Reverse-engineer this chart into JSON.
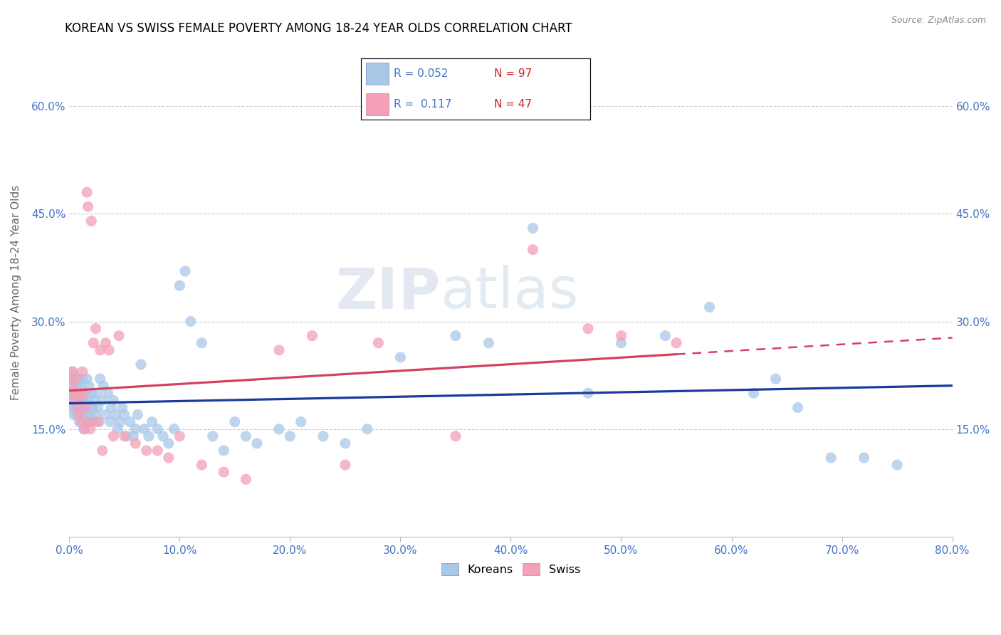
{
  "title": "KOREAN VS SWISS FEMALE POVERTY AMONG 18-24 YEAR OLDS CORRELATION CHART",
  "source": "Source: ZipAtlas.com",
  "ylabel": "Female Poverty Among 18-24 Year Olds",
  "xlim": [
    0.0,
    0.8
  ],
  "ylim": [
    0.0,
    0.68
  ],
  "xticks": [
    0.0,
    0.1,
    0.2,
    0.3,
    0.4,
    0.5,
    0.6,
    0.7,
    0.8
  ],
  "yticks": [
    0.15,
    0.3,
    0.45,
    0.6
  ],
  "ytick_labels": [
    "15.0%",
    "30.0%",
    "45.0%",
    "60.0%"
  ],
  "xtick_labels": [
    "0.0%",
    "10.0%",
    "20.0%",
    "30.0%",
    "40.0%",
    "50.0%",
    "60.0%",
    "70.0%",
    "80.0%"
  ],
  "korean_color": "#a8c8e8",
  "swiss_color": "#f4a0b8",
  "korean_line_color": "#1a3a9c",
  "swiss_line_color": "#d44060",
  "watermark_zip": "ZIP",
  "watermark_atlas": "atlas",
  "korean_R": "0.052",
  "korean_N": "97",
  "swiss_R": "0.117",
  "swiss_N": "47",
  "koreans_x": [
    0.001,
    0.002,
    0.002,
    0.003,
    0.003,
    0.004,
    0.004,
    0.005,
    0.005,
    0.006,
    0.006,
    0.007,
    0.007,
    0.008,
    0.008,
    0.009,
    0.009,
    0.01,
    0.01,
    0.011,
    0.011,
    0.012,
    0.012,
    0.013,
    0.013,
    0.014,
    0.015,
    0.015,
    0.016,
    0.017,
    0.017,
    0.018,
    0.018,
    0.019,
    0.02,
    0.021,
    0.022,
    0.023,
    0.024,
    0.025,
    0.026,
    0.027,
    0.028,
    0.03,
    0.031,
    0.033,
    0.035,
    0.037,
    0.038,
    0.04,
    0.042,
    0.044,
    0.046,
    0.048,
    0.05,
    0.052,
    0.055,
    0.058,
    0.06,
    0.062,
    0.065,
    0.068,
    0.072,
    0.075,
    0.08,
    0.085,
    0.09,
    0.095,
    0.1,
    0.105,
    0.11,
    0.12,
    0.13,
    0.14,
    0.15,
    0.16,
    0.17,
    0.19,
    0.2,
    0.21,
    0.23,
    0.25,
    0.27,
    0.3,
    0.35,
    0.38,
    0.42,
    0.47,
    0.5,
    0.54,
    0.58,
    0.62,
    0.64,
    0.66,
    0.69,
    0.72,
    0.75
  ],
  "koreans_y": [
    0.22,
    0.2,
    0.18,
    0.23,
    0.19,
    0.21,
    0.17,
    0.2,
    0.18,
    0.22,
    0.19,
    0.21,
    0.17,
    0.2,
    0.18,
    0.22,
    0.16,
    0.19,
    0.21,
    0.18,
    0.2,
    0.17,
    0.22,
    0.19,
    0.15,
    0.18,
    0.2,
    0.17,
    0.22,
    0.19,
    0.16,
    0.21,
    0.18,
    0.17,
    0.2,
    0.18,
    0.16,
    0.19,
    0.17,
    0.2,
    0.18,
    0.16,
    0.22,
    0.19,
    0.21,
    0.17,
    0.2,
    0.16,
    0.18,
    0.19,
    0.17,
    0.15,
    0.16,
    0.18,
    0.17,
    0.14,
    0.16,
    0.14,
    0.15,
    0.17,
    0.24,
    0.15,
    0.14,
    0.16,
    0.15,
    0.14,
    0.13,
    0.15,
    0.35,
    0.37,
    0.3,
    0.27,
    0.14,
    0.12,
    0.16,
    0.14,
    0.13,
    0.15,
    0.14,
    0.16,
    0.14,
    0.13,
    0.15,
    0.25,
    0.28,
    0.27,
    0.43,
    0.2,
    0.27,
    0.28,
    0.32,
    0.2,
    0.22,
    0.18,
    0.11,
    0.11,
    0.1
  ],
  "swiss_x": [
    0.001,
    0.002,
    0.003,
    0.004,
    0.005,
    0.006,
    0.007,
    0.008,
    0.009,
    0.01,
    0.011,
    0.012,
    0.013,
    0.014,
    0.015,
    0.016,
    0.017,
    0.018,
    0.019,
    0.02,
    0.022,
    0.024,
    0.026,
    0.028,
    0.03,
    0.033,
    0.036,
    0.04,
    0.045,
    0.05,
    0.06,
    0.07,
    0.08,
    0.09,
    0.1,
    0.12,
    0.14,
    0.16,
    0.19,
    0.22,
    0.25,
    0.28,
    0.35,
    0.42,
    0.47,
    0.5,
    0.55
  ],
  "swiss_y": [
    0.22,
    0.21,
    0.23,
    0.2,
    0.19,
    0.22,
    0.18,
    0.2,
    0.17,
    0.19,
    0.16,
    0.23,
    0.2,
    0.15,
    0.18,
    0.48,
    0.46,
    0.16,
    0.15,
    0.44,
    0.27,
    0.29,
    0.16,
    0.26,
    0.12,
    0.27,
    0.26,
    0.14,
    0.28,
    0.14,
    0.13,
    0.12,
    0.12,
    0.11,
    0.14,
    0.1,
    0.09,
    0.08,
    0.26,
    0.28,
    0.1,
    0.27,
    0.14,
    0.4,
    0.29,
    0.28,
    0.27
  ]
}
